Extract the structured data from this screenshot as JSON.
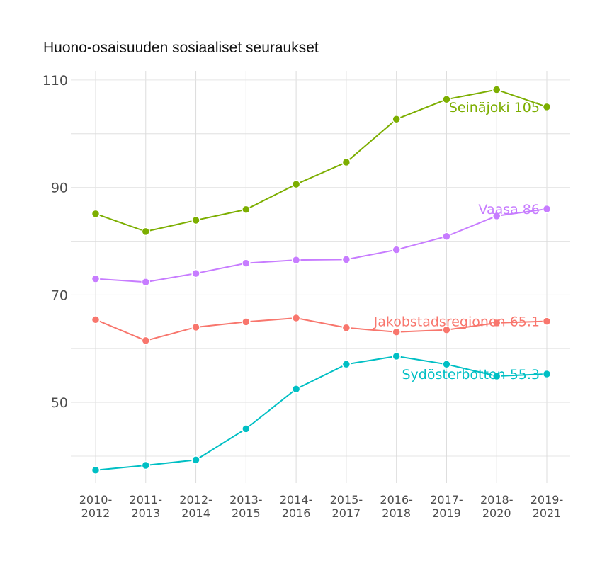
{
  "chart_data": {
    "type": "line",
    "title": "Huono-osaisuuden sosiaaliset seuraukset",
    "xlabel": "",
    "ylabel": "",
    "categories": [
      "2010-\n2012",
      "2011-\n2013",
      "2012-\n2014",
      "2013-\n2015",
      "2014-\n2016",
      "2015-\n2017",
      "2016-\n2018",
      "2017-\n2019",
      "2018-\n2020",
      "2019-\n2021"
    ],
    "yticks": [
      50,
      70,
      90,
      110
    ],
    "ylim": [
      35,
      111.7
    ],
    "grid": true,
    "legend": "none",
    "series": [
      {
        "name": "Seinäjoki",
        "label": "Seinäjoki 105",
        "color": "#7CAE00",
        "values": [
          85.1,
          81.8,
          83.9,
          85.9,
          90.6,
          94.7,
          102.7,
          106.4,
          108.2,
          105
        ]
      },
      {
        "name": "Vaasa",
        "label": "Vaasa 86",
        "color": "#C77CFF",
        "values": [
          73.0,
          72.4,
          74.0,
          75.9,
          76.5,
          76.6,
          78.4,
          80.9,
          84.7,
          86
        ]
      },
      {
        "name": "Jakobstadsregionen",
        "label": "Jakobstadsregionen 65.1",
        "color": "#F8766D",
        "values": [
          65.4,
          61.5,
          64.0,
          65.0,
          65.7,
          63.9,
          63.1,
          63.5,
          64.8,
          65.1
        ]
      },
      {
        "name": "Sydösterbotten",
        "label": "Sydösterbotten 55.3",
        "color": "#00BFC4",
        "values": [
          37.4,
          38.3,
          39.3,
          45.1,
          52.5,
          57.1,
          58.6,
          57.1,
          54.9,
          55.3
        ]
      }
    ]
  }
}
